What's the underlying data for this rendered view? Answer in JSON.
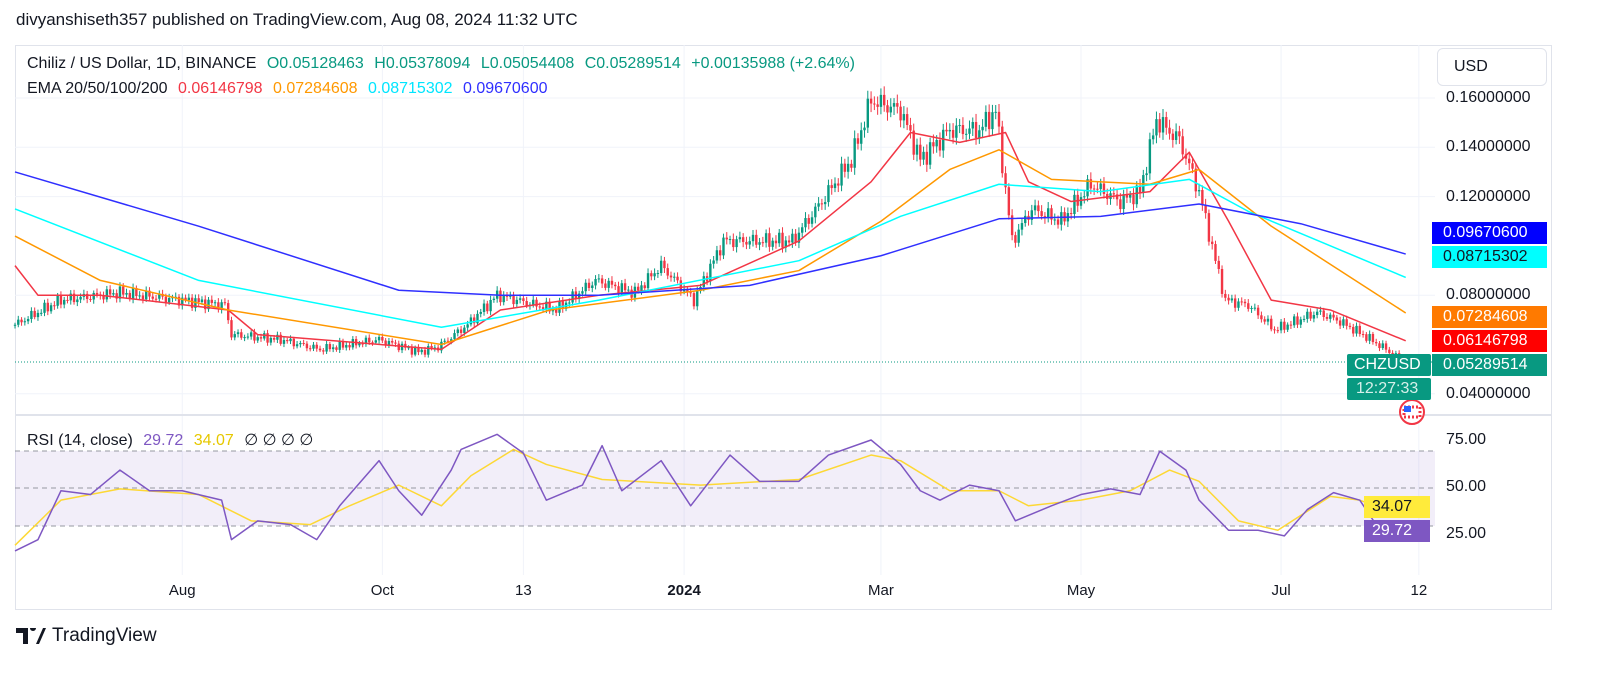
{
  "publisher_line": "divyanshiseth357 published on TradingView.com, Aug 08, 2024 11:32 UTC",
  "legend": {
    "symbol": "Chiliz / US Dollar, 1D, BINANCE",
    "o": "O0.05128463",
    "h": "H0.05378094",
    "l": "L0.05054408",
    "c": "C0.05289514",
    "change": "+0.00135988 (+2.64%)",
    "ema_label": "EMA 20/50/100/200",
    "ema20": "0.06146798",
    "ema50": "0.07284608",
    "ema100": "0.08715302",
    "ema200": "0.09670600",
    "rsi_label": "RSI (14, close)",
    "rsi": "29.72",
    "rsi_ma": "34.07",
    "na": "∅ ∅ ∅ ∅"
  },
  "currency": "USD",
  "symbol_tag": "CHZUSD",
  "countdown": "12:27:33",
  "footer_brand": "TradingView",
  "colors": {
    "up": "#089981",
    "down": "#f23645",
    "ema20": "#f23645",
    "ema50": "#ff9800",
    "ema100": "#00ffff",
    "ema200": "#2f2fff",
    "rsi": "#7e57c2",
    "rsi_ma": "#fdd835"
  },
  "chart_data": [
    {
      "type": "candlestick",
      "ylim": [
        0.035,
        0.17
      ],
      "price_ticks": [
        "0.16000000",
        "0.14000000",
        "0.12000000",
        "0.08000000",
        "0.04000000"
      ],
      "x_ticks": [
        [
          "2023-08-01",
          "Aug"
        ],
        [
          "2023-10-01",
          "Oct"
        ],
        [
          "2023-11-13",
          "13"
        ],
        [
          "2024-01-01",
          "2024"
        ],
        [
          "2024-03-01",
          "Mar"
        ],
        [
          "2024-05-01",
          "May"
        ],
        [
          "2024-07-01",
          "Jul"
        ],
        [
          "2024-08-12",
          "12"
        ]
      ],
      "last_price": "0.05289514",
      "close_path": [
        [
          "2023-06-11",
          0.068
        ],
        [
          "2023-06-25",
          0.078
        ],
        [
          "2023-07-13",
          0.081
        ],
        [
          "2023-08-01",
          0.078
        ],
        [
          "2023-08-14",
          0.076
        ],
        [
          "2023-08-16",
          0.064
        ],
        [
          "2023-08-31",
          0.062
        ],
        [
          "2023-09-12",
          0.058
        ],
        [
          "2023-09-30",
          0.062
        ],
        [
          "2023-10-12",
          0.057
        ],
        [
          "2023-10-18",
          0.059
        ],
        [
          "2023-10-27",
          0.068
        ],
        [
          "2023-11-05",
          0.08
        ],
        [
          "2023-11-17",
          0.076
        ],
        [
          "2023-11-23",
          0.074
        ],
        [
          "2023-12-05",
          0.086
        ],
        [
          "2023-12-17",
          0.081
        ],
        [
          "2023-12-25",
          0.092
        ],
        [
          "2024-01-04",
          0.078
        ],
        [
          "2024-01-13",
          0.102
        ],
        [
          "2024-01-22",
          0.102
        ],
        [
          "2024-02-03",
          0.102
        ],
        [
          "2024-02-12",
          0.118
        ],
        [
          "2024-02-21",
          0.135
        ],
        [
          "2024-02-27",
          0.159
        ],
        [
          "2024-03-07",
          0.155
        ],
        [
          "2024-03-13",
          0.135
        ],
        [
          "2024-03-22",
          0.147
        ],
        [
          "2024-03-31",
          0.147
        ],
        [
          "2024-04-05",
          0.155
        ],
        [
          "2024-04-08",
          0.123
        ],
        [
          "2024-04-10",
          0.102
        ],
        [
          "2024-04-16",
          0.115
        ],
        [
          "2024-04-25",
          0.11
        ],
        [
          "2024-05-04",
          0.125
        ],
        [
          "2024-05-13",
          0.118
        ],
        [
          "2024-05-19",
          0.122
        ],
        [
          "2024-05-24",
          0.151
        ],
        [
          "2024-05-31",
          0.143
        ],
        [
          "2024-06-06",
          0.122
        ],
        [
          "2024-06-11",
          0.094
        ],
        [
          "2024-06-14",
          0.078
        ],
        [
          "2024-06-21",
          0.076
        ],
        [
          "2024-06-29",
          0.066
        ],
        [
          "2024-07-03",
          0.068
        ],
        [
          "2024-07-12",
          0.073
        ],
        [
          "2024-07-18",
          0.07
        ],
        [
          "2024-07-26",
          0.064
        ],
        [
          "2024-08-08",
          0.0529
        ]
      ],
      "series": [
        {
          "name": "EMA 20",
          "color": "#f23645",
          "points": [
            [
              "2023-06-11",
              0.092
            ],
            [
              "2023-06-18",
              0.08
            ],
            [
              "2023-07-07",
              0.08
            ],
            [
              "2023-08-15",
              0.074
            ],
            [
              "2023-08-24",
              0.064
            ],
            [
              "2023-10-19",
              0.058
            ],
            [
              "2023-11-06",
              0.074
            ],
            [
              "2023-12-06",
              0.08
            ],
            [
              "2024-01-06",
              0.084
            ],
            [
              "2024-02-05",
              0.102
            ],
            [
              "2024-02-27",
              0.126
            ],
            [
              "2024-03-10",
              0.146
            ],
            [
              "2024-03-25",
              0.142
            ],
            [
              "2024-04-08",
              0.146
            ],
            [
              "2024-04-15",
              0.126
            ],
            [
              "2024-04-28",
              0.118
            ],
            [
              "2024-05-22",
              0.122
            ],
            [
              "2024-06-03",
              0.138
            ],
            [
              "2024-06-15",
              0.11
            ],
            [
              "2024-06-28",
              0.078
            ],
            [
              "2024-07-16",
              0.074
            ],
            [
              "2024-08-08",
              0.0615
            ]
          ]
        },
        {
          "name": "EMA 50",
          "color": "#ff9800",
          "points": [
            [
              "2023-06-11",
              0.104
            ],
            [
              "2023-07-07",
              0.086
            ],
            [
              "2023-08-15",
              0.074
            ],
            [
              "2023-10-19",
              0.06
            ],
            [
              "2023-11-21",
              0.074
            ],
            [
              "2024-01-06",
              0.082
            ],
            [
              "2024-02-05",
              0.09
            ],
            [
              "2024-03-01",
              0.11
            ],
            [
              "2024-03-22",
              0.131
            ],
            [
              "2024-04-06",
              0.139
            ],
            [
              "2024-04-22",
              0.127
            ],
            [
              "2024-05-22",
              0.125
            ],
            [
              "2024-06-06",
              0.131
            ],
            [
              "2024-06-28",
              0.108
            ],
            [
              "2024-08-08",
              0.0728
            ]
          ]
        },
        {
          "name": "EMA 100",
          "color": "#00ffff",
          "points": [
            [
              "2023-06-11",
              0.115
            ],
            [
              "2023-08-06",
              0.086
            ],
            [
              "2023-10-19",
              0.067
            ],
            [
              "2023-12-06",
              0.078
            ],
            [
              "2024-02-05",
              0.094
            ],
            [
              "2024-03-07",
              0.112
            ],
            [
              "2024-04-06",
              0.125
            ],
            [
              "2024-05-07",
              0.122
            ],
            [
              "2024-06-03",
              0.127
            ],
            [
              "2024-06-21",
              0.114
            ],
            [
              "2024-08-08",
              0.0872
            ]
          ]
        },
        {
          "name": "EMA 200",
          "color": "#2f2fff",
          "points": [
            [
              "2023-06-11",
              0.13
            ],
            [
              "2023-08-06",
              0.108
            ],
            [
              "2023-10-06",
              0.082
            ],
            [
              "2023-11-06",
              0.08
            ],
            [
              "2023-12-06",
              0.08
            ],
            [
              "2024-01-21",
              0.084
            ],
            [
              "2024-03-01",
              0.096
            ],
            [
              "2024-04-06",
              0.111
            ],
            [
              "2024-05-07",
              0.112
            ],
            [
              "2024-06-06",
              0.117
            ],
            [
              "2024-07-07",
              0.109
            ],
            [
              "2024-08-08",
              0.0967
            ]
          ]
        }
      ]
    },
    {
      "type": "line",
      "title": "RSI (14, close)",
      "ylim": [
        15,
        80
      ],
      "y_ticks": [
        "75.00",
        "50.00",
        "25.00"
      ],
      "bands": [
        30,
        70
      ],
      "series": [
        {
          "name": "RSI",
          "color": "#7e57c2",
          "points": [
            [
              "2023-06-11",
              16
            ],
            [
              "2023-06-18",
              22
            ],
            [
              "2023-06-25",
              48
            ],
            [
              "2023-07-04",
              46
            ],
            [
              "2023-07-13",
              59
            ],
            [
              "2023-07-22",
              48
            ],
            [
              "2023-08-01",
              48
            ],
            [
              "2023-08-13",
              43
            ],
            [
              "2023-08-16",
              22
            ],
            [
              "2023-08-24",
              32
            ],
            [
              "2023-09-03",
              30
            ],
            [
              "2023-09-11",
              22
            ],
            [
              "2023-09-18",
              40
            ],
            [
              "2023-09-30",
              64
            ],
            [
              "2023-10-06",
              48
            ],
            [
              "2023-10-13",
              35
            ],
            [
              "2023-10-22",
              59
            ],
            [
              "2023-10-25",
              70
            ],
            [
              "2023-11-05",
              78
            ],
            [
              "2023-11-13",
              68
            ],
            [
              "2023-11-20",
              43
            ],
            [
              "2023-12-01",
              51
            ],
            [
              "2023-12-07",
              72
            ],
            [
              "2023-12-13",
              48
            ],
            [
              "2023-12-25",
              64
            ],
            [
              "2024-01-03",
              40
            ],
            [
              "2024-01-15",
              67
            ],
            [
              "2024-01-24",
              53
            ],
            [
              "2024-02-05",
              53
            ],
            [
              "2024-02-14",
              67
            ],
            [
              "2024-02-27",
              75
            ],
            [
              "2024-03-07",
              62
            ],
            [
              "2024-03-13",
              48
            ],
            [
              "2024-03-19",
              43
            ],
            [
              "2024-03-28",
              51
            ],
            [
              "2024-04-06",
              48
            ],
            [
              "2024-04-11",
              32
            ],
            [
              "2024-04-22",
              40
            ],
            [
              "2024-05-01",
              46
            ],
            [
              "2024-05-10",
              49
            ],
            [
              "2024-05-19",
              46
            ],
            [
              "2024-05-25",
              69
            ],
            [
              "2024-06-02",
              59
            ],
            [
              "2024-06-06",
              43
            ],
            [
              "2024-06-15",
              27
            ],
            [
              "2024-06-24",
              27
            ],
            [
              "2024-07-02",
              24
            ],
            [
              "2024-07-09",
              38
            ],
            [
              "2024-07-17",
              47
            ],
            [
              "2024-07-25",
              43
            ],
            [
              "2024-08-02",
              22
            ],
            [
              "2024-08-08",
              29.72
            ]
          ]
        },
        {
          "name": "RSI-based MA",
          "color": "#fdd835",
          "points": [
            [
              "2023-06-11",
              19
            ],
            [
              "2023-06-25",
              43
            ],
            [
              "2023-07-13",
              49
            ],
            [
              "2023-08-06",
              46
            ],
            [
              "2023-08-22",
              32
            ],
            [
              "2023-09-09",
              30
            ],
            [
              "2023-09-21",
              40
            ],
            [
              "2023-10-06",
              51
            ],
            [
              "2023-10-19",
              40
            ],
            [
              "2023-10-28",
              56
            ],
            [
              "2023-11-10",
              70
            ],
            [
              "2023-11-20",
              62
            ],
            [
              "2023-12-07",
              54
            ],
            [
              "2024-01-06",
              51
            ],
            [
              "2024-02-05",
              54
            ],
            [
              "2024-02-27",
              67
            ],
            [
              "2024-03-07",
              64
            ],
            [
              "2024-03-22",
              48
            ],
            [
              "2024-04-06",
              48
            ],
            [
              "2024-04-15",
              40
            ],
            [
              "2024-05-01",
              43
            ],
            [
              "2024-05-16",
              48
            ],
            [
              "2024-05-28",
              59
            ],
            [
              "2024-06-06",
              53
            ],
            [
              "2024-06-18",
              32
            ],
            [
              "2024-06-30",
              27
            ],
            [
              "2024-07-16",
              45
            ],
            [
              "2024-07-25",
              43
            ],
            [
              "2024-08-08",
              34.07
            ]
          ]
        }
      ]
    }
  ]
}
